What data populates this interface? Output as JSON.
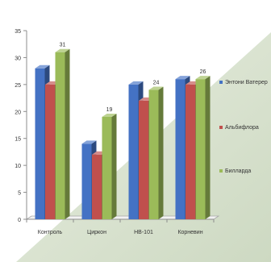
{
  "chart_data": {
    "type": "bar",
    "title": "",
    "xlabel": "",
    "ylabel": "",
    "ylim": [
      0,
      35
    ],
    "yticks": [
      0,
      5,
      10,
      15,
      20,
      25,
      30,
      35
    ],
    "grid": false,
    "legend_position": "right",
    "categories": [
      "Контроль",
      "Циркон",
      "НВ-101",
      "Корневин"
    ],
    "series": [
      {
        "name": "Энтони Ватерер",
        "values": [
          28,
          14,
          25,
          26
        ],
        "color": "#4472C4",
        "labels": [
          null,
          null,
          null,
          null
        ]
      },
      {
        "name": "Альбифлора",
        "values": [
          25,
          12,
          22,
          25
        ],
        "color": "#C0504D",
        "labels": [
          null,
          null,
          null,
          null
        ]
      },
      {
        "name": "Билларда",
        "values": [
          31,
          19,
          24,
          26
        ],
        "color": "#9BBB59",
        "labels": [
          "31",
          "19",
          "24",
          "26"
        ]
      }
    ]
  }
}
